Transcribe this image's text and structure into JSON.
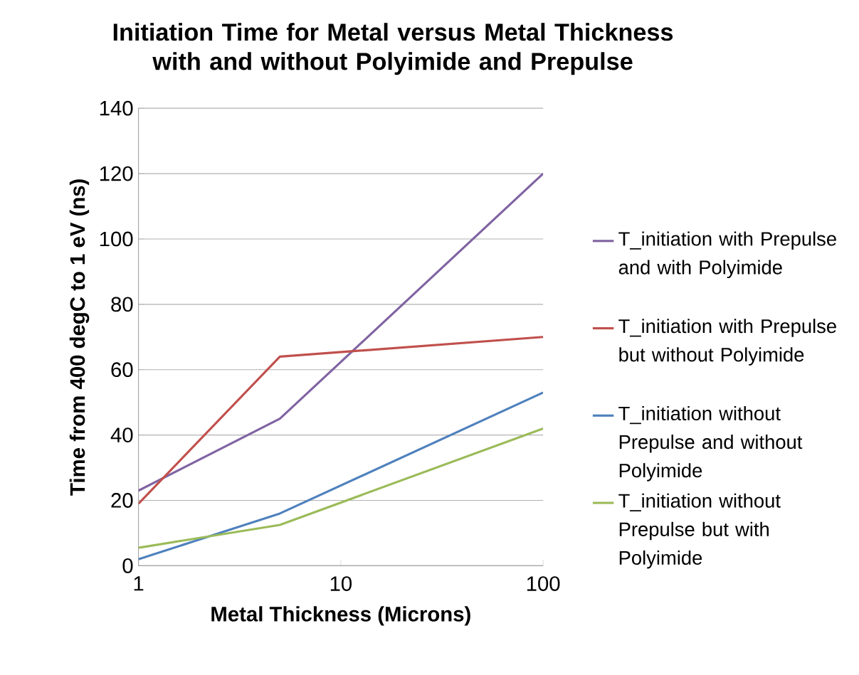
{
  "chart_data": {
    "type": "line",
    "title": "Initiation Time for Metal versus Metal Thickness with and without Polyimide and Prepulse",
    "xlabel": "Metal Thickness (Microns)",
    "ylabel": "Time from 400 degC to 1 eV (ns)",
    "x": [
      1,
      5,
      100
    ],
    "series": [
      {
        "name": "T_initiation with Prepulse and with Polyimide",
        "color": "#8064a2",
        "values": [
          23,
          45,
          120
        ]
      },
      {
        "name": "T_initiation with Prepulse but without Polyimide",
        "color": "#c0504d",
        "values": [
          19,
          64,
          70
        ]
      },
      {
        "name": "T_initiation without Prepulse and without Polyimide",
        "color": "#4f81bd",
        "values": [
          2,
          16,
          53
        ]
      },
      {
        "name": "T_initiation without Prepulse but with Polyimide",
        "color": "#9bbb59",
        "values": [
          5.5,
          12.5,
          42
        ]
      }
    ],
    "log": "x",
    "xlim": [
      1,
      100
    ],
    "xticks": [
      1,
      10,
      100
    ],
    "ylim": [
      0,
      140
    ],
    "yticks": [
      0,
      20,
      40,
      60,
      80,
      100,
      120,
      140
    ],
    "grid": "y",
    "legend": "right",
    "marker": "none",
    "line_style": "solid"
  }
}
